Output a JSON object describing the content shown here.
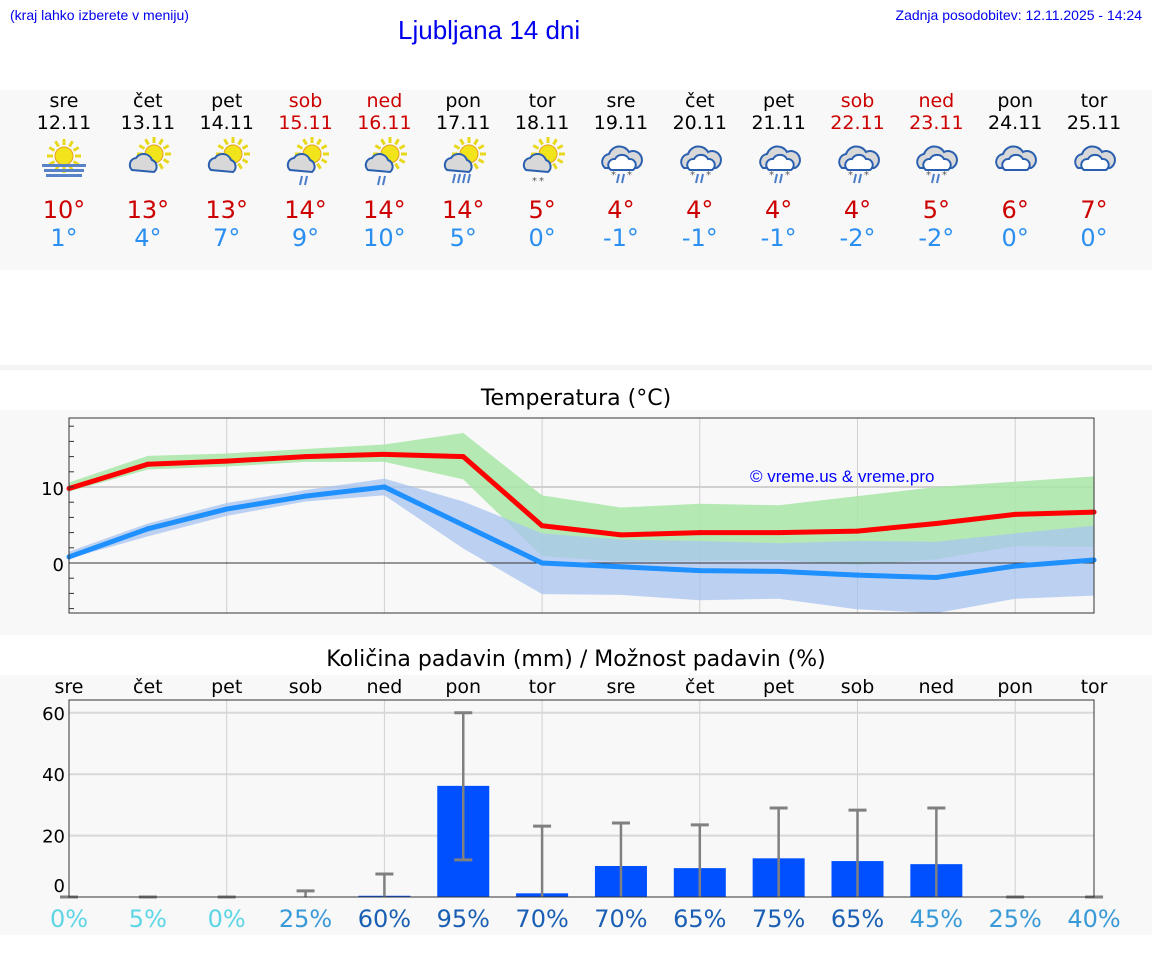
{
  "header": {
    "hint": "(kraj lahko izberete v meniju)",
    "title": "Ljubljana 14 dni",
    "updated": "Zadnja posodobitev: 12.11.2025 - 14:24"
  },
  "days": [
    {
      "name": "sre",
      "date": "12.11",
      "weekend": false,
      "icon": "sun-fog",
      "tmax": "10°",
      "tmin": "1°"
    },
    {
      "name": "čet",
      "date": "13.11",
      "weekend": false,
      "icon": "partly-cloudy",
      "tmax": "13°",
      "tmin": "4°"
    },
    {
      "name": "pet",
      "date": "14.11",
      "weekend": false,
      "icon": "partly-cloudy",
      "tmax": "13°",
      "tmin": "7°"
    },
    {
      "name": "sob",
      "date": "15.11",
      "weekend": true,
      "icon": "partly-cloudy-rain",
      "tmax": "14°",
      "tmin": "9°"
    },
    {
      "name": "ned",
      "date": "16.11",
      "weekend": true,
      "icon": "partly-cloudy-rain",
      "tmax": "14°",
      "tmin": "10°"
    },
    {
      "name": "pon",
      "date": "17.11",
      "weekend": false,
      "icon": "partly-cloudy-heavy-rain",
      "tmax": "14°",
      "tmin": "5°"
    },
    {
      "name": "tor",
      "date": "18.11",
      "weekend": false,
      "icon": "partly-cloudy-snow",
      "tmax": "5°",
      "tmin": "0°"
    },
    {
      "name": "sre",
      "date": "19.11",
      "weekend": false,
      "icon": "cloudy-sleet",
      "tmax": "4°",
      "tmin": "-1°"
    },
    {
      "name": "čet",
      "date": "20.11",
      "weekend": false,
      "icon": "cloudy-sleet",
      "tmax": "4°",
      "tmin": "-1°"
    },
    {
      "name": "pet",
      "date": "21.11",
      "weekend": false,
      "icon": "cloudy-sleet",
      "tmax": "4°",
      "tmin": "-1°"
    },
    {
      "name": "sob",
      "date": "22.11",
      "weekend": true,
      "icon": "cloudy-sleet",
      "tmax": "4°",
      "tmin": "-2°"
    },
    {
      "name": "ned",
      "date": "23.11",
      "weekend": true,
      "icon": "cloudy-sleet",
      "tmax": "5°",
      "tmin": "-2°"
    },
    {
      "name": "pon",
      "date": "24.11",
      "weekend": false,
      "icon": "cloudy",
      "tmax": "6°",
      "tmin": "0°"
    },
    {
      "name": "tor",
      "date": "25.11",
      "weekend": false,
      "icon": "cloudy",
      "tmax": "7°",
      "tmin": "0°"
    }
  ],
  "colors": {
    "max": "#ff0000",
    "min": "#1e90ff",
    "max_band": "#a8e6a8",
    "min_band": "#a8c4f0",
    "bar": "#0050ff",
    "err": "#808080",
    "prob_low": "#5dd5e5",
    "prob_mid": "#3a9ad8",
    "prob_high": "#1a5fb4"
  },
  "chart_data": [
    {
      "type": "line",
      "title": "Temperatura (°C)",
      "watermark": "© vreme.us & vreme.pro",
      "ylim": [
        -6.6,
        19
      ],
      "yticks": [
        0,
        10
      ],
      "grid": true,
      "series": [
        {
          "values": [
            9.8,
            13,
            13.4,
            14,
            14.3,
            14,
            4.9,
            3.7,
            4.0,
            4.0,
            4.2,
            5.2,
            6.4,
            6.7
          ],
          "band_low": [
            9.4,
            12.3,
            12.7,
            13.3,
            13.3,
            11,
            0.9,
            0.2,
            0.3,
            0.4,
            -0.3,
            0.5,
            2.2,
            2.1
          ],
          "band_high": [
            10.6,
            14.1,
            14.4,
            15,
            15.6,
            17.1,
            8.9,
            7.3,
            7.8,
            7.6,
            8.8,
            10,
            10.7,
            11.4
          ]
        },
        {
          "values": [
            0.8,
            4.5,
            7.1,
            8.8,
            10,
            5,
            0,
            -0.5,
            -1,
            -1.1,
            -1.6,
            -1.9,
            -0.4,
            0.4
          ],
          "band_low": [
            0.6,
            3.5,
            6.2,
            8.1,
            8.9,
            1.9,
            -4.1,
            -4.2,
            -4.9,
            -4.7,
            -6.1,
            -6.6,
            -4.7,
            -4.3
          ],
          "band_high": [
            1.5,
            5.2,
            7.9,
            9.6,
            11.1,
            8.1,
            3.9,
            3.1,
            2.9,
            2.6,
            2.9,
            2.8,
            3.9,
            4.9
          ]
        }
      ]
    },
    {
      "type": "bar",
      "title": "Količina padavin (mm) / Možnost padavin (%)",
      "ylim": [
        0,
        64
      ],
      "yticks": [
        0,
        20,
        40,
        60
      ],
      "grid": true,
      "categories": [
        "sre",
        "čet",
        "pet",
        "sob",
        "ned",
        "pon",
        "tor",
        "sre",
        "čet",
        "pet",
        "sob",
        "ned",
        "pon",
        "tor"
      ],
      "values": [
        0,
        0,
        0,
        0,
        0.4,
        36.2,
        1.2,
        10.1,
        9.4,
        12.6,
        11.7,
        10.7,
        0,
        0
      ],
      "err_low": [
        0,
        0,
        0,
        0,
        0,
        12.1,
        0,
        0,
        0,
        0,
        0,
        0,
        0,
        0
      ],
      "err_high": [
        0,
        0,
        0,
        2,
        7.5,
        60,
        23.1,
        24.1,
        23.5,
        29,
        28.3,
        29,
        0,
        0
      ],
      "probability": [
        "0%",
        "5%",
        "0%",
        "25%",
        "60%",
        "95%",
        "70%",
        "70%",
        "65%",
        "75%",
        "65%",
        "45%",
        "25%",
        "40%"
      ],
      "probability_values": [
        0,
        5,
        0,
        25,
        60,
        95,
        70,
        70,
        65,
        75,
        65,
        45,
        25,
        40
      ]
    }
  ]
}
